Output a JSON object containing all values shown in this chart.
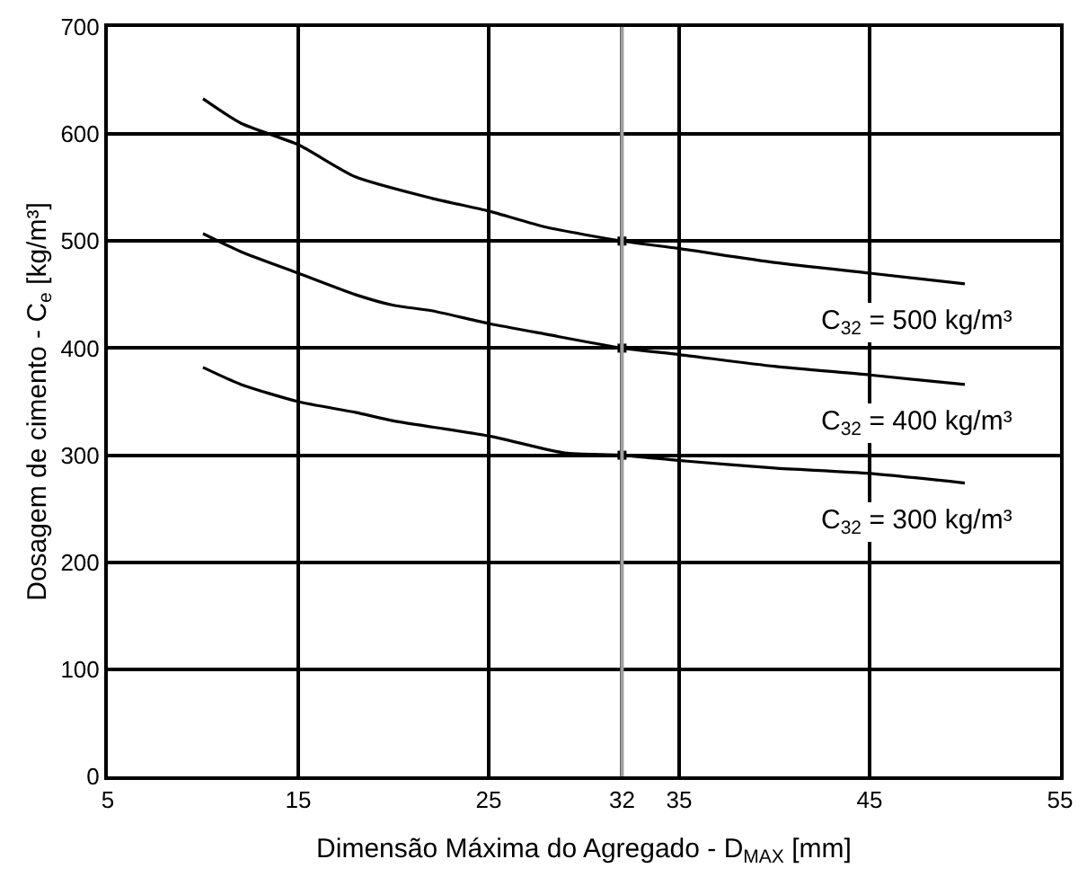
{
  "chart_data": {
    "type": "line",
    "xlabel": "Dimensão Máxima do Agregado - D$_{MAX}$ [mm]",
    "ylabel": "Dosagem de cimento - C$_{e}$ [kg/m³]",
    "xlim": [
      5,
      55
    ],
    "xticks": [
      5,
      15,
      25,
      32,
      35,
      45,
      55
    ],
    "ylim": [
      0,
      700
    ],
    "yticks": [
      0,
      100,
      200,
      300,
      400,
      500,
      600,
      700
    ],
    "grid": true,
    "series": [
      {
        "name": "C$_{32}$ = 500 kg/m³",
        "color": "#000000",
        "x": [
          10,
          12,
          15,
          18,
          22,
          25,
          28,
          32,
          35,
          40,
          45,
          50
        ],
        "values": [
          633,
          610,
          590,
          560,
          540,
          528,
          513,
          500,
          493,
          480,
          470,
          460
        ]
      },
      {
        "name": "C$_{32}$ = 400 kg/m³",
        "color": "#000000",
        "x": [
          10,
          12,
          15,
          18,
          20,
          22,
          25,
          28,
          32,
          35,
          40,
          45,
          50
        ],
        "values": [
          507,
          490,
          470,
          450,
          440,
          435,
          423,
          413,
          400,
          394,
          383,
          375,
          366
        ]
      },
      {
        "name": "C$_{32}$ = 300 kg/m³",
        "color": "#000000",
        "x": [
          10,
          12,
          15,
          18,
          20,
          25,
          29,
          32,
          35,
          40,
          45,
          50
        ],
        "values": [
          382,
          366,
          350,
          340,
          332,
          318,
          302,
          300,
          295,
          288,
          283,
          274
        ]
      },
      {
        "type": "scatter",
        "marker": "square",
        "color": "#000000",
        "x": [
          32,
          32,
          32
        ],
        "values": [
          500,
          400,
          300
        ]
      }
    ],
    "ref_lines": [
      {
        "axis": "x",
        "value": 32,
        "color": "#a0a0a0"
      }
    ]
  }
}
